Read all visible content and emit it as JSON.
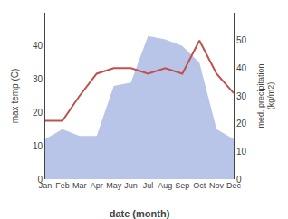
{
  "chart_data": {
    "type": "combo",
    "categories": [
      "Jan",
      "Feb",
      "Mar",
      "Apr",
      "May",
      "Jun",
      "Jul",
      "Aug",
      "Sep",
      "Oct",
      "Nov",
      "Dec"
    ],
    "series": [
      {
        "type": "area",
        "color": "#b8c4e8",
        "values": [
          12,
          15,
          13,
          13,
          28,
          29,
          43,
          42,
          40,
          35,
          15,
          12
        ]
      },
      {
        "type": "line",
        "color": "#c0504d",
        "axis": "y2",
        "values": [
          21,
          21,
          30,
          38,
          40,
          40,
          38,
          40,
          38,
          50,
          38,
          31
        ]
      }
    ],
    "xlabel": "date (month)",
    "ylabel": "max temp (C)",
    "y2label": "med. precipitation\n(kg/m2)",
    "ylim": [
      0,
      50
    ],
    "yticks": [
      0,
      10,
      20,
      30,
      40
    ],
    "y2lim": [
      0,
      60
    ],
    "y2ticks": [
      0,
      10,
      20,
      30,
      40,
      50
    ],
    "grid": false
  }
}
